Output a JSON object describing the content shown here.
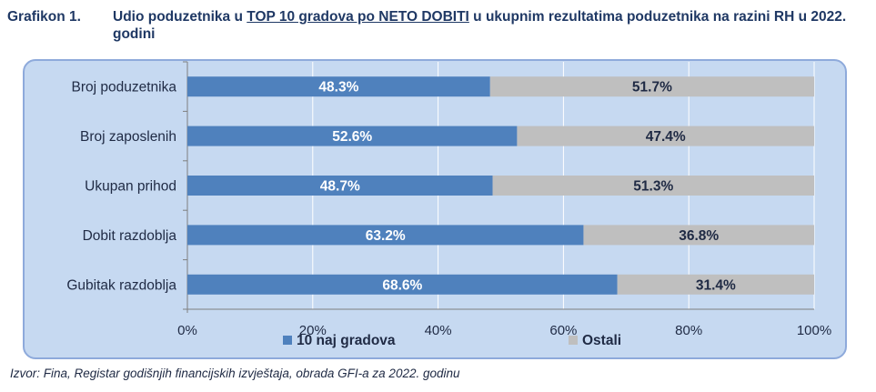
{
  "header": {
    "label": "Grafikon 1.",
    "title_part1": "Udio poduzetnika u ",
    "title_underlined": "TOP 10 gradova po NETO DOBITI",
    "title_part2": " u ukupnim rezultatima poduzetnika na razini RH u 2022. godini"
  },
  "source": "Izvor: Fina, Registar godišnjih financijskih izvještaja, obrada GFI-a za 2022. godinu",
  "chart_data": {
    "type": "bar",
    "orientation": "horizontal",
    "stacked": "percent",
    "categories": [
      "Broj poduzetnika",
      "Broj zaposlenih",
      "Ukupan prihod",
      "Dobit razdoblja",
      "Gubitak razdoblja"
    ],
    "series": [
      {
        "name": "10 naj gradova",
        "values": [
          48.3,
          52.6,
          48.7,
          63.2,
          68.6
        ],
        "labels": [
          "48.3%",
          "52.6%",
          "48.7%",
          "63.2%",
          "68.6%"
        ],
        "color": "#4f81bd"
      },
      {
        "name": "Ostali",
        "values": [
          51.7,
          47.4,
          51.3,
          36.8,
          31.4
        ],
        "labels": [
          "51.7%",
          "47.4%",
          "51.3%",
          "36.8%",
          "31.4%"
        ],
        "color": "#bfbfbf"
      }
    ],
    "xlim": [
      0,
      100
    ],
    "xticks": [
      "0%",
      "20%",
      "40%",
      "60%",
      "80%",
      "100%"
    ],
    "grid": "vertical",
    "legend": "bottom",
    "background": "#c6d9f1"
  }
}
